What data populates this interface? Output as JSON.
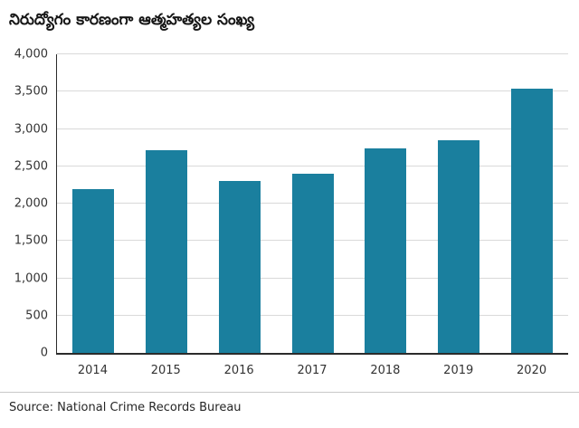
{
  "title": "నిరుద్యోగం కారణంగా ఆత్మహత్యల సంఖ్య",
  "source": "Source: National Crime Records Bureau",
  "colors": {
    "bar": "#1a7f9e",
    "axis": "#2b2b2b",
    "grid": "#d9d9d9"
  },
  "chart_data": {
    "type": "bar",
    "title": "నిరుద్యోగం కారణంగా ఆత్మహత్యల సంఖ్య",
    "categories": [
      "2014",
      "2015",
      "2016",
      "2017",
      "2018",
      "2019",
      "2020"
    ],
    "values": [
      2200,
      2720,
      2300,
      2400,
      2740,
      2850,
      3540
    ],
    "xlabel": "",
    "ylabel": "",
    "ylim": [
      0,
      4000
    ],
    "yticks": [
      0,
      500,
      1000,
      1500,
      2000,
      2500,
      3000,
      3500,
      4000
    ],
    "ytick_labels": [
      "0",
      "500",
      "1,000",
      "1,500",
      "2,000",
      "2,500",
      "3,000",
      "3,500",
      "4,000"
    ],
    "grid": true,
    "legend": false,
    "legend_position": "none",
    "bar_color": "#1a7f9e",
    "caption": "Source: National Crime Records Bureau"
  }
}
